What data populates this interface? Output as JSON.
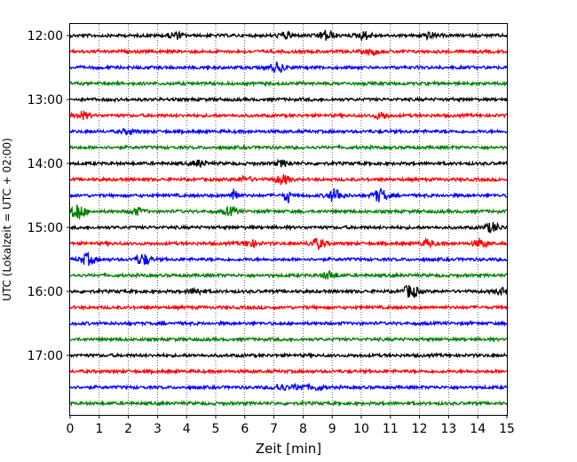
{
  "chart_data": {
    "type": "line",
    "title": "",
    "xlabel": "Zeit  [min]",
    "ylabel": "UTC (Lokalzeit = UTC + 02:00)",
    "xlim": [
      0,
      15
    ],
    "x_ticks": [
      0,
      1,
      2,
      3,
      4,
      5,
      6,
      7,
      8,
      9,
      10,
      11,
      12,
      13,
      14,
      15
    ],
    "y_ticks": [
      "12:00",
      "13:00",
      "14:00",
      "15:00",
      "16:00",
      "17:00"
    ],
    "grid": "vertical-dotted",
    "color_cycle": [
      "#000000",
      "#ff0000",
      "#0000ff",
      "#008000"
    ],
    "traces_per_hour": 4,
    "trace_start_times": [
      "12:00",
      "12:15",
      "12:30",
      "12:45",
      "13:00",
      "13:15",
      "13:30",
      "13:45",
      "14:00",
      "14:15",
      "14:30",
      "14:45",
      "15:00",
      "15:15",
      "15:30",
      "15:45",
      "16:00",
      "16:15",
      "16:30",
      "16:45",
      "17:00",
      "17:15",
      "17:30",
      "17:45"
    ],
    "events": [
      {
        "start": "12:00",
        "x": 3.6,
        "amp": 0.35
      },
      {
        "start": "12:00",
        "x": 7.4,
        "amp": 0.3
      },
      {
        "start": "12:00",
        "x": 8.8,
        "amp": 0.55
      },
      {
        "start": "12:00",
        "x": 10.1,
        "amp": 0.4
      },
      {
        "start": "12:00",
        "x": 12.3,
        "amp": 0.3
      },
      {
        "start": "12:15",
        "x": 10.4,
        "amp": 0.25
      },
      {
        "start": "12:30",
        "x": 7.1,
        "amp": 0.5
      },
      {
        "start": "13:15",
        "x": 0.4,
        "amp": 0.4
      },
      {
        "start": "13:15",
        "x": 10.7,
        "amp": 0.35
      },
      {
        "start": "13:30",
        "x": 2.0,
        "amp": 0.25
      },
      {
        "start": "14:00",
        "x": 4.4,
        "amp": 0.3
      },
      {
        "start": "14:00",
        "x": 7.3,
        "amp": 0.3
      },
      {
        "start": "14:15",
        "x": 6.0,
        "amp": 0.25
      },
      {
        "start": "14:15",
        "x": 7.3,
        "amp": 0.5
      },
      {
        "start": "14:30",
        "x": 5.65,
        "amp": 1.6
      },
      {
        "start": "14:30",
        "x": 7.45,
        "amp": 1.2
      },
      {
        "start": "14:30",
        "x": 9.1,
        "amp": 0.7
      },
      {
        "start": "14:30",
        "x": 10.65,
        "amp": 0.7
      },
      {
        "start": "14:45",
        "x": 0.25,
        "amp": 0.9
      },
      {
        "start": "14:45",
        "x": 2.3,
        "amp": 0.35
      },
      {
        "start": "14:45",
        "x": 5.5,
        "amp": 0.4
      },
      {
        "start": "15:00",
        "x": 14.5,
        "amp": 0.5
      },
      {
        "start": "15:15",
        "x": 6.2,
        "amp": 0.35
      },
      {
        "start": "15:15",
        "x": 8.5,
        "amp": 0.5
      },
      {
        "start": "15:15",
        "x": 12.3,
        "amp": 0.35
      },
      {
        "start": "15:15",
        "x": 14.1,
        "amp": 0.4
      },
      {
        "start": "15:30",
        "x": 0.6,
        "amp": 0.6
      },
      {
        "start": "15:30",
        "x": 2.5,
        "amp": 0.6
      },
      {
        "start": "15:45",
        "x": 8.9,
        "amp": 0.4
      },
      {
        "start": "16:00",
        "x": 4.3,
        "amp": 0.3
      },
      {
        "start": "16:00",
        "x": 11.7,
        "amp": 0.7
      },
      {
        "start": "16:00",
        "x": 14.8,
        "amp": 0.3
      },
      {
        "start": "17:30",
        "x": 7.2,
        "amp": 0.35
      },
      {
        "start": "17:30",
        "x": 7.9,
        "amp": 0.3
      },
      {
        "start": "17:30",
        "x": 8.5,
        "amp": 0.25
      }
    ]
  }
}
